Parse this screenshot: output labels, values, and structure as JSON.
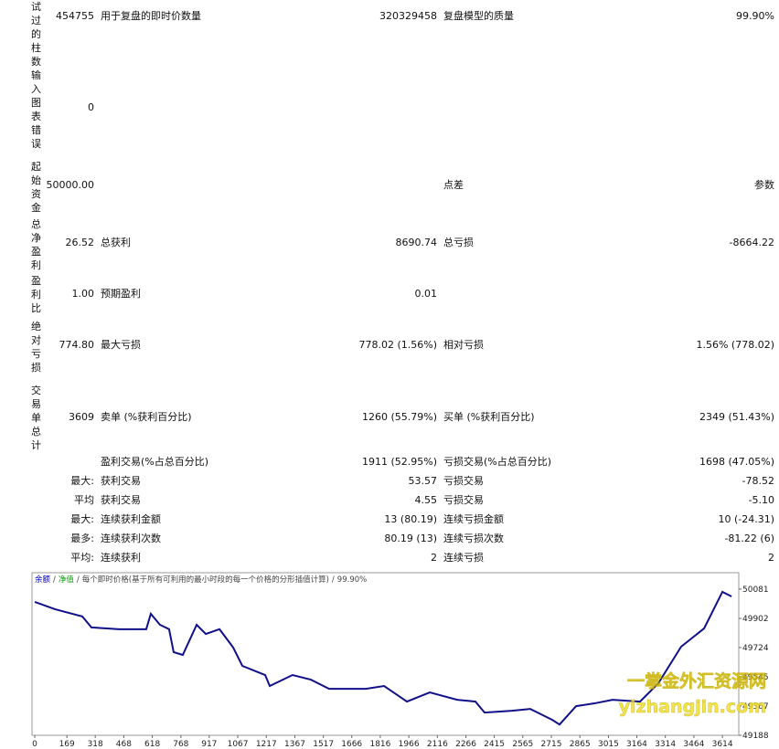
{
  "report": {
    "rows": [
      {
        "label": "试过的柱数",
        "value": "454755",
        "l1": "用于复盘的即时价数量",
        "v1": "320329458",
        "l2": "复盘模型的质量",
        "v2": "99.90%"
      },
      {
        "label": "输入图表错误",
        "value": "0"
      },
      {
        "label": "起始资金",
        "value": "50000.00",
        "l2": "点差",
        "v2": "参数"
      },
      {
        "label": "总净盈利",
        "value": "26.52",
        "l1": "总获利",
        "v1": "8690.74",
        "l2": "总亏损",
        "v2": "-8664.22"
      },
      {
        "label": "盈利比",
        "value": "1.00",
        "l1": "预期盈利",
        "v1": "0.01"
      },
      {
        "label": "绝对亏损",
        "value": "774.80",
        "l1": "最大亏损",
        "v1": "778.02 (1.56%)",
        "l2": "相对亏损",
        "v2": "1.56% (778.02)"
      },
      {
        "label": "交易单总计",
        "value": "3609",
        "l1": "卖单 (%获利百分比)",
        "v1": "1260 (55.79%)",
        "l2": "买单 (%获利百分比)",
        "v2": "2349 (51.43%)"
      },
      {
        "l1": "盈利交易(%占总百分比)",
        "v1": "1911 (52.95%)",
        "l2": "亏损交易(%占总百分比)",
        "v2": "1698 (47.05%)"
      },
      {
        "value": "最大:",
        "l1": "获利交易",
        "v1": "53.57",
        "l2": "亏损交易",
        "v2": "-78.52"
      },
      {
        "value": "平均",
        "l1": "获利交易",
        "v1": "4.55",
        "l2": "亏损交易",
        "v2": "-5.10"
      },
      {
        "value": "最大:",
        "l1": "连续获利金额",
        "v1": "13 (80.19)",
        "l2": "连续亏损金额",
        "v2": "10 (-24.31)"
      },
      {
        "value": "最多:",
        "l1": "连续获利次数",
        "v1": "80.19 (13)",
        "l2": "连续亏损次数",
        "v2": "-81.22 (6)"
      },
      {
        "value": "平均:",
        "l1": "连续获利",
        "v1": "2",
        "l2": "连续亏损",
        "v2": "2"
      }
    ]
  },
  "chart_data": {
    "type": "line",
    "header": [
      "余额",
      "/",
      "净值",
      "/",
      "每个即时价格(基于所有可利用的最小时段的每一个价格的分形插值计算)",
      "/",
      "99.90%"
    ],
    "header_colors": [
      "#0000c0",
      "#444444",
      "#00a000",
      "#444444",
      "#444444",
      "#444444",
      "#444444"
    ],
    "color": "#10108a",
    "x": [
      0,
      106,
      250,
      298,
      442,
      586,
      610,
      658,
      706,
      730,
      778,
      851,
      899,
      971,
      1043,
      1091,
      1211,
      1235,
      1355,
      1451,
      1547,
      1740,
      1836,
      1956,
      2076,
      2220,
      2316,
      2364,
      2508,
      2604,
      2720,
      2758,
      2845,
      2941,
      3037,
      3181,
      3277,
      3397,
      3518,
      3614,
      3662
    ],
    "values": [
      50003,
      49958,
      49914,
      49847,
      49836,
      49836,
      49930,
      49863,
      49836,
      49696,
      49679,
      49863,
      49807,
      49836,
      49724,
      49612,
      49556,
      49489,
      49556,
      49528,
      49472,
      49472,
      49489,
      49394,
      49450,
      49405,
      49394,
      49327,
      49338,
      49349,
      49282,
      49254,
      49366,
      49383,
      49405,
      49394,
      49505,
      49729,
      49841,
      50064,
      50036
    ],
    "xlim": [
      0,
      3700
    ],
    "ylim": [
      49188,
      50181
    ],
    "xticks": [
      0,
      169,
      318,
      468,
      618,
      768,
      917,
      1067,
      1217,
      1367,
      1517,
      1666,
      1816,
      1966,
      2116,
      2266,
      2415,
      2565,
      2715,
      2865,
      3015,
      3164,
      3314,
      3464,
      3614
    ],
    "yticks": [
      49188,
      49367,
      49545,
      49724,
      49902,
      50081
    ],
    "watermark": [
      "一掌金外汇资源网",
      "yizhangjin.com"
    ]
  }
}
